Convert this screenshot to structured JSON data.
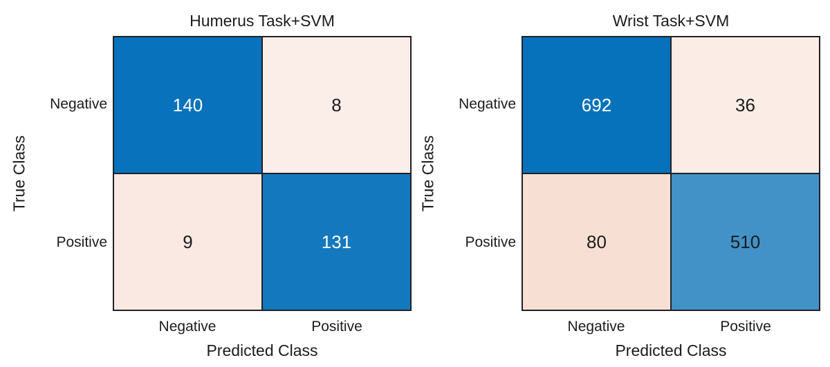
{
  "charts": [
    {
      "title": "Humerus Task+SVM",
      "xlabel": "Predicted Class",
      "ylabel": "True Class",
      "x_ticks": [
        "Negative",
        "Positive"
      ],
      "y_ticks": [
        "Negative",
        "Positive"
      ],
      "cells": [
        {
          "value": "140",
          "bg": "#0873bc",
          "text": "#ffffff"
        },
        {
          "value": "8",
          "bg": "#fbede7",
          "text": "#1c1c1c"
        },
        {
          "value": "9",
          "bg": "#fae9e2",
          "text": "#1c1c1c"
        },
        {
          "value": "131",
          "bg": "#1478be",
          "text": "#ffffff"
        }
      ]
    },
    {
      "title": "Wrist Task+SVM",
      "xlabel": "Predicted Class",
      "ylabel": "True Class",
      "x_ticks": [
        "Negative",
        "Positive"
      ],
      "y_ticks": [
        "Negative",
        "Positive"
      ],
      "cells": [
        {
          "value": "692",
          "bg": "#0672bb",
          "text": "#ffffff"
        },
        {
          "value": "36",
          "bg": "#fbece6",
          "text": "#1c1c1c"
        },
        {
          "value": "80",
          "bg": "#f7e0d3",
          "text": "#1c1c1c"
        },
        {
          "value": "510",
          "bg": "#4292c8",
          "text": "#1c1c1c"
        }
      ]
    }
  ],
  "colors": {
    "heat_max_blue": "#0672bb",
    "heat_min_peach": "#fbede7",
    "grid_line": "#202026",
    "label_text": "#1c1c1c"
  },
  "chart_data": [
    {
      "type": "heatmap",
      "subtype": "confusion-matrix",
      "title": "Humerus Task+SVM",
      "xlabel": "Predicted Class",
      "ylabel": "True Class",
      "x_categories": [
        "Negative",
        "Positive"
      ],
      "y_categories": [
        "Negative",
        "Positive"
      ],
      "values": [
        [
          140,
          8
        ],
        [
          9,
          131
        ]
      ],
      "colormap": "blue-high, pale-peach-low",
      "grid": true,
      "legend": false
    },
    {
      "type": "heatmap",
      "subtype": "confusion-matrix",
      "title": "Wrist Task+SVM",
      "xlabel": "Predicted Class",
      "ylabel": "True Class",
      "x_categories": [
        "Negative",
        "Positive"
      ],
      "y_categories": [
        "Negative",
        "Positive"
      ],
      "values": [
        [
          692,
          36
        ],
        [
          80,
          510
        ]
      ],
      "colormap": "blue-high, pale-peach-low",
      "grid": true,
      "legend": false
    }
  ]
}
